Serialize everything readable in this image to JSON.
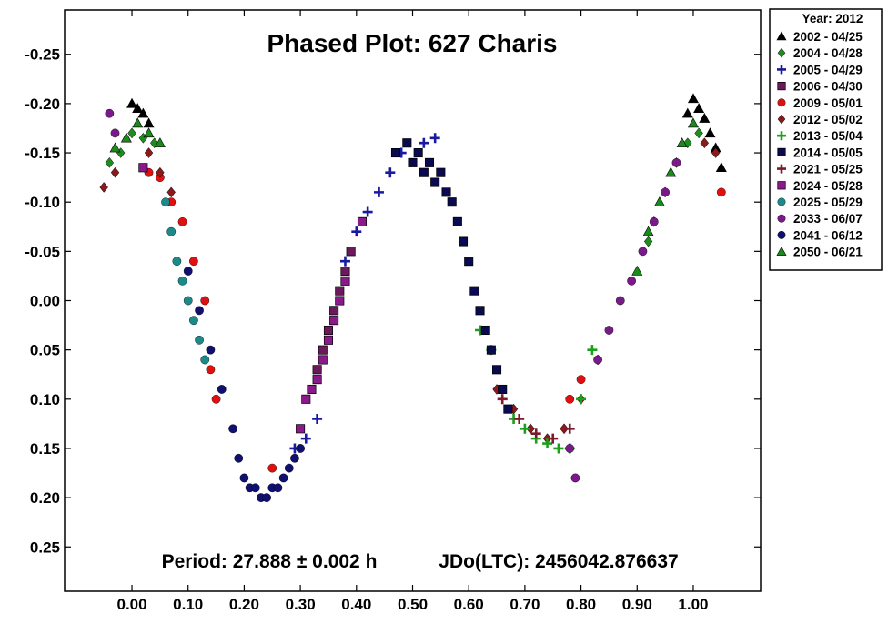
{
  "chart_data": {
    "type": "scatter",
    "title": "Phased Plot: 627 Charis",
    "xlabel": "",
    "ylabel": "",
    "xlim": [
      -0.12,
      1.12
    ],
    "ylim": [
      -0.295,
      0.295
    ],
    "y_inverted": true,
    "grid": false,
    "legend_position": "outside-top-right",
    "x_ticks": [
      0.0,
      0.1,
      0.2,
      0.3,
      0.4,
      0.5,
      0.6,
      0.7,
      0.8,
      0.9,
      1.0
    ],
    "x_tick_labels": [
      "0.00",
      "0.10",
      "0.20",
      "0.30",
      "0.40",
      "0.50",
      "0.60",
      "0.70",
      "0.80",
      "0.90",
      "1.00"
    ],
    "y_ticks": [
      -0.25,
      -0.2,
      -0.15,
      -0.1,
      -0.05,
      0.0,
      0.05,
      0.1,
      0.15,
      0.2,
      0.25
    ],
    "y_tick_labels": [
      "-0.25",
      "-0.20",
      "-0.15",
      "-0.10",
      "-0.05",
      "0.00",
      "0.05",
      "0.10",
      "0.15",
      "0.20",
      "0.25"
    ],
    "annotations": {
      "period": "Period: 27.888 ± 0.002 h",
      "epoch": "JDo(LTC): 2456042.876637"
    },
    "legend_header": "Year: 2012",
    "series": [
      {
        "name": "2002 - 04/25",
        "marker": "triangle",
        "color": "#000000",
        "x": [
          0.0,
          0.01,
          0.02,
          0.03,
          0.99,
          1.0,
          1.01,
          1.02,
          1.03,
          1.04,
          1.05
        ],
        "y": [
          -0.2,
          -0.195,
          -0.19,
          -0.18,
          -0.19,
          -0.205,
          -0.195,
          -0.185,
          -0.17,
          -0.155,
          -0.135
        ]
      },
      {
        "name": "2004 - 04/28",
        "marker": "diamond",
        "color": "#1e8c1e",
        "x": [
          -0.04,
          -0.02,
          0.0,
          0.02,
          0.04,
          0.92,
          0.93,
          0.95,
          0.97,
          0.99,
          1.01
        ],
        "y": [
          -0.14,
          -0.15,
          -0.17,
          -0.165,
          -0.16,
          -0.06,
          -0.08,
          -0.11,
          -0.14,
          -0.16,
          -0.17
        ]
      },
      {
        "name": "2005 - 04/29",
        "marker": "plus",
        "color": "#1a1aa0",
        "x": [
          0.29,
          0.31,
          0.33,
          0.38,
          0.4,
          0.42,
          0.44,
          0.46,
          0.48,
          0.52,
          0.54
        ],
        "y": [
          0.15,
          0.14,
          0.12,
          -0.04,
          -0.07,
          -0.09,
          -0.11,
          -0.13,
          -0.15,
          -0.16,
          -0.165
        ]
      },
      {
        "name": "2006 - 04/30",
        "marker": "square",
        "color": "#6a1a5a",
        "x": [
          0.33,
          0.34,
          0.35,
          0.36,
          0.37,
          0.38,
          0.39
        ],
        "y": [
          0.07,
          0.05,
          0.03,
          0.01,
          -0.01,
          -0.03,
          -0.05
        ]
      },
      {
        "name": "2009 - 05/01",
        "marker": "circle",
        "color": "#e01010",
        "x": [
          0.03,
          0.05,
          0.07,
          0.09,
          0.11,
          0.13,
          0.14,
          0.15,
          0.25,
          0.78,
          0.8,
          1.05
        ],
        "y": [
          -0.13,
          -0.125,
          -0.1,
          -0.08,
          -0.04,
          0.0,
          0.07,
          0.1,
          0.17,
          0.1,
          0.08,
          -0.11
        ]
      },
      {
        "name": "2012 - 05/02",
        "marker": "diamond",
        "color": "#8b1a1a",
        "x": [
          -0.05,
          -0.03,
          0.03,
          0.05,
          0.07,
          0.65,
          0.68,
          0.71,
          0.74,
          0.77,
          0.8,
          0.83,
          1.02,
          1.04
        ],
        "y": [
          -0.115,
          -0.13,
          -0.15,
          -0.13,
          -0.11,
          0.09,
          0.11,
          0.13,
          0.14,
          0.13,
          0.1,
          0.06,
          -0.16,
          -0.15
        ]
      },
      {
        "name": "2013 - 05/04",
        "marker": "plus",
        "color": "#1aa01a",
        "x": [
          0.62,
          0.64,
          0.68,
          0.7,
          0.72,
          0.74,
          0.76,
          0.78,
          0.8,
          0.82
        ],
        "y": [
          0.03,
          0.05,
          0.12,
          0.13,
          0.14,
          0.145,
          0.15,
          0.15,
          0.1,
          0.05
        ]
      },
      {
        "name": "2014 - 05/05",
        "marker": "square",
        "color": "#0a0a50",
        "x": [
          0.47,
          0.49,
          0.5,
          0.51,
          0.52,
          0.53,
          0.54,
          0.55,
          0.56,
          0.57,
          0.58,
          0.59,
          0.6,
          0.61,
          0.62,
          0.63,
          0.64,
          0.65,
          0.66,
          0.67
        ],
        "y": [
          -0.15,
          -0.16,
          -0.14,
          -0.15,
          -0.13,
          -0.14,
          -0.12,
          -0.13,
          -0.11,
          -0.1,
          -0.08,
          -0.06,
          -0.04,
          -0.01,
          0.01,
          0.03,
          0.05,
          0.07,
          0.09,
          0.11
        ]
      },
      {
        "name": "2021 - 05/25",
        "marker": "plus",
        "color": "#7a1a2a",
        "x": [
          0.66,
          0.69,
          0.72,
          0.75,
          0.78
        ],
        "y": [
          0.1,
          0.12,
          0.135,
          0.14,
          0.13
        ]
      },
      {
        "name": "2024 - 05/28",
        "marker": "square",
        "color": "#8a1a8a",
        "x": [
          0.02,
          0.3,
          0.31,
          0.32,
          0.33,
          0.34,
          0.35,
          0.36,
          0.37,
          0.38,
          0.41
        ],
        "y": [
          -0.135,
          0.13,
          0.1,
          0.09,
          0.08,
          0.06,
          0.04,
          0.02,
          0.0,
          -0.02,
          -0.08
        ]
      },
      {
        "name": "2025 - 05/29",
        "marker": "circle",
        "color": "#1a8a8a",
        "x": [
          0.06,
          0.07,
          0.08,
          0.09,
          0.1,
          0.11,
          0.12,
          0.13
        ],
        "y": [
          -0.1,
          -0.07,
          -0.04,
          -0.02,
          0.0,
          0.02,
          0.04,
          0.06
        ]
      },
      {
        "name": "2033 - 06/07",
        "marker": "circle",
        "color": "#7a1a8a",
        "x": [
          -0.04,
          -0.03,
          0.78,
          0.79,
          0.83,
          0.85,
          0.87,
          0.89,
          0.91,
          0.93,
          0.95,
          0.97
        ],
        "y": [
          -0.19,
          -0.17,
          0.15,
          0.18,
          0.06,
          0.03,
          0.0,
          -0.02,
          -0.05,
          -0.08,
          -0.11,
          -0.14
        ]
      },
      {
        "name": "2041 - 06/12",
        "marker": "circle",
        "color": "#101070",
        "x": [
          0.1,
          0.12,
          0.14,
          0.16,
          0.18,
          0.19,
          0.2,
          0.21,
          0.22,
          0.23,
          0.24,
          0.25,
          0.26,
          0.27,
          0.28,
          0.29,
          0.3
        ],
        "y": [
          -0.03,
          0.01,
          0.05,
          0.09,
          0.13,
          0.16,
          0.18,
          0.19,
          0.19,
          0.2,
          0.2,
          0.19,
          0.19,
          0.18,
          0.17,
          0.16,
          0.15
        ]
      },
      {
        "name": "2050 - 06/21",
        "marker": "triangle",
        "color": "#1a8a1a",
        "x": [
          -0.03,
          -0.01,
          0.01,
          0.03,
          0.05,
          0.9,
          0.92,
          0.94,
          0.96,
          0.98,
          1.0
        ],
        "y": [
          -0.155,
          -0.165,
          -0.18,
          -0.17,
          -0.16,
          -0.03,
          -0.07,
          -0.1,
          -0.13,
          -0.16,
          -0.18
        ]
      }
    ]
  }
}
